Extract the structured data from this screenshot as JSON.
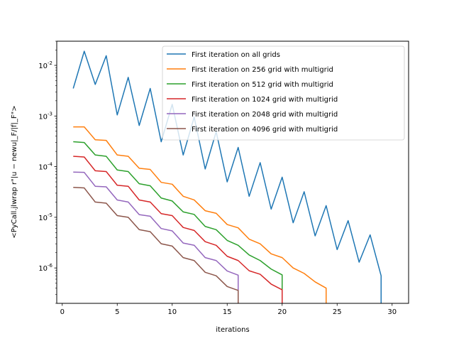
{
  "chart_data": {
    "type": "line",
    "title": "",
    "xlabel": "iterations",
    "ylabel": "<PyCall.jlwrap r\"|u − newu|_F/|f|_F\">",
    "xlim": [
      -0.5,
      31.5
    ],
    "ylim": [
      2e-07,
      0.03
    ],
    "yscale": "log",
    "xticks": [
      0,
      5,
      10,
      15,
      20,
      25,
      30
    ],
    "yticks": [
      {
        "value": 0.01,
        "label": "10^-2"
      },
      {
        "value": 0.001,
        "label": "10^-3"
      },
      {
        "value": 0.0001,
        "label": "10^-4"
      },
      {
        "value": 1e-05,
        "label": "10^-5"
      },
      {
        "value": 1e-06,
        "label": "10^-6"
      }
    ],
    "grid": false,
    "legend_position": "top-right",
    "series": [
      {
        "name": "First iteration on all grids",
        "color": "#1f77b4",
        "x": [
          1,
          2,
          3,
          4,
          5,
          6,
          7,
          8,
          9,
          10,
          11,
          12,
          13,
          14,
          15,
          16,
          17,
          18,
          19,
          20,
          21,
          22,
          23,
          24,
          25,
          26,
          27,
          28,
          29,
          29
        ],
        "y": [
          0.0035,
          0.019,
          0.0042,
          0.0155,
          0.00105,
          0.0058,
          0.00065,
          0.0035,
          0.00031,
          0.0017,
          0.00017,
          0.00095,
          9e-05,
          0.00049,
          5e-05,
          0.00024,
          2.6e-05,
          0.00012,
          1.45e-05,
          6.2e-05,
          7.8e-06,
          3.2e-05,
          4.3e-06,
          1.7e-05,
          2.3e-06,
          8.6e-06,
          1.3e-06,
          4.5e-06,
          7e-07,
          2e-07
        ]
      },
      {
        "name": "First iteration on 256 grid with multigrid",
        "color": "#ff7f0e",
        "x": [
          1,
          2,
          3,
          4,
          5,
          6,
          7,
          8,
          9,
          10,
          11,
          12,
          13,
          14,
          15,
          16,
          17,
          18,
          19,
          20,
          21,
          22,
          23,
          24,
          24
        ],
        "y": [
          0.00061,
          0.00061,
          0.00034,
          0.00033,
          0.00017,
          0.00016,
          9.3e-05,
          8.8e-05,
          4.9e-05,
          4.5e-05,
          2.6e-05,
          2.2e-05,
          1.35e-05,
          1.2e-05,
          7.2e-06,
          6.2e-06,
          3.7e-06,
          3e-06,
          1.9e-06,
          1.6e-06,
          1e-06,
          7.8e-07,
          5.3e-07,
          4e-07,
          2e-07
        ]
      },
      {
        "name": "First iteration on 512 grid with multigrid",
        "color": "#2ca02c",
        "x": [
          1,
          2,
          3,
          4,
          5,
          6,
          7,
          8,
          9,
          10,
          11,
          12,
          13,
          14,
          15,
          16,
          17,
          18,
          19,
          20,
          20
        ],
        "y": [
          0.00031,
          0.0003,
          0.00017,
          0.00016,
          8.6e-05,
          8e-05,
          4.6e-05,
          4.2e-05,
          2.4e-05,
          2.1e-05,
          1.28e-05,
          1.14e-05,
          6.6e-06,
          5.7e-06,
          3.5e-06,
          2.8e-06,
          1.8e-06,
          1.4e-06,
          9.5e-07,
          7.3e-07,
          2e-07
        ]
      },
      {
        "name": "First iteration on 1024 grid with multigrid",
        "color": "#d62728",
        "x": [
          1,
          2,
          3,
          4,
          5,
          6,
          7,
          8,
          9,
          10,
          11,
          12,
          13,
          14,
          15,
          16,
          17,
          18,
          19,
          20,
          20
        ],
        "y": [
          0.00016,
          0.000155,
          8.3e-05,
          8e-05,
          4.3e-05,
          4.1e-05,
          2.2e-05,
          2e-05,
          1.18e-05,
          1.08e-05,
          6.3e-06,
          5.5e-06,
          3.3e-06,
          2.8e-06,
          1.7e-06,
          1.4e-06,
          8.8e-07,
          7.5e-07,
          4.8e-07,
          3.7e-07,
          2e-07
        ]
      },
      {
        "name": "First iteration on 2048 grid with multigrid",
        "color": "#9467bd",
        "x": [
          1,
          2,
          3,
          4,
          5,
          6,
          7,
          8,
          9,
          10,
          11,
          12,
          13,
          14,
          15,
          16,
          16
        ],
        "y": [
          7.8e-05,
          7.7e-05,
          4.1e-05,
          4e-05,
          2.2e-05,
          2e-05,
          1.13e-05,
          1.05e-05,
          6e-06,
          5.4e-06,
          3.1e-06,
          2.8e-06,
          1.6e-06,
          1.4e-06,
          8.7e-07,
          7.2e-07,
          2e-07
        ]
      },
      {
        "name": "First iteration on 4096 grid with multigrid",
        "color": "#8c564b",
        "x": [
          1,
          2,
          3,
          4,
          5,
          6,
          7,
          8,
          9,
          10,
          11,
          12,
          13,
          14,
          15,
          16,
          16
        ],
        "y": [
          3.9e-05,
          3.8e-05,
          2e-05,
          1.9e-05,
          1.08e-05,
          1e-05,
          5.7e-06,
          5.2e-06,
          3e-06,
          2.7e-06,
          1.6e-06,
          1.4e-06,
          8.2e-07,
          7e-07,
          4.3e-07,
          3.6e-07,
          2e-07
        ]
      }
    ]
  }
}
